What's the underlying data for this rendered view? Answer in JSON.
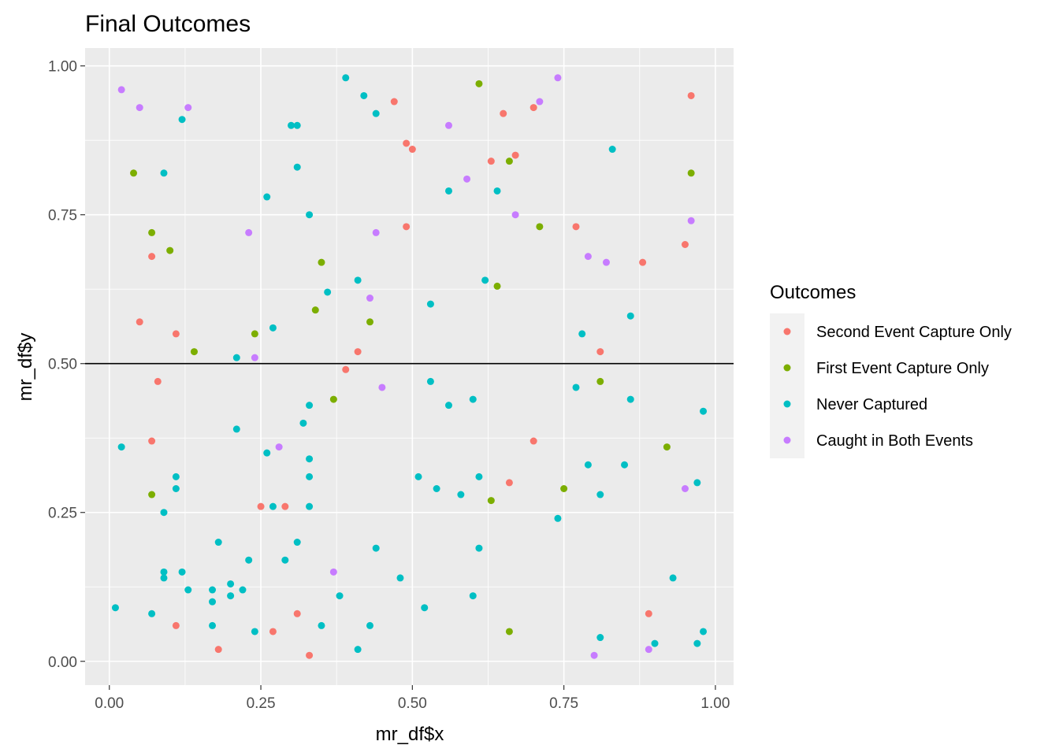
{
  "chart_data": {
    "type": "scatter",
    "title": "Final Outcomes",
    "xlabel": "mr_df$x",
    "ylabel": "mr_df$y",
    "xlim": [
      -0.04,
      1.03
    ],
    "ylim": [
      -0.04,
      1.03
    ],
    "xticks": [
      0,
      0.25,
      0.5,
      0.75,
      1
    ],
    "xtick_labels": [
      "0.00",
      "0.25",
      "0.50",
      "0.75",
      "1.00"
    ],
    "yticks": [
      0,
      0.25,
      0.5,
      0.75,
      1
    ],
    "ytick_labels": [
      "0.00",
      "0.25",
      "0.50",
      "0.75",
      "1.00"
    ],
    "grid": true,
    "hline": 0.5,
    "legend": {
      "title": "Outcomes",
      "position": "right"
    },
    "series": [
      {
        "name": "Second Event Capture Only",
        "color": "#F8766D",
        "points": [
          [
            0.47,
            0.94
          ],
          [
            0.49,
            0.87
          ],
          [
            0.5,
            0.86
          ],
          [
            0.65,
            0.92
          ],
          [
            0.7,
            0.93
          ],
          [
            0.96,
            0.95
          ],
          [
            0.63,
            0.84
          ],
          [
            0.67,
            0.85
          ],
          [
            0.49,
            0.73
          ],
          [
            0.77,
            0.73
          ],
          [
            0.07,
            0.68
          ],
          [
            0.88,
            0.67
          ],
          [
            0.95,
            0.7
          ],
          [
            0.05,
            0.57
          ],
          [
            0.11,
            0.55
          ],
          [
            0.41,
            0.52
          ],
          [
            0.81,
            0.52
          ],
          [
            0.08,
            0.47
          ],
          [
            0.39,
            0.49
          ],
          [
            0.07,
            0.37
          ],
          [
            0.7,
            0.37
          ],
          [
            0.66,
            0.3
          ],
          [
            0.25,
            0.26
          ],
          [
            0.29,
            0.26
          ],
          [
            0.31,
            0.08
          ],
          [
            0.11,
            0.06
          ],
          [
            0.27,
            0.05
          ],
          [
            0.18,
            0.02
          ],
          [
            0.33,
            0.01
          ],
          [
            0.89,
            0.08
          ]
        ]
      },
      {
        "name": "First Event Capture Only",
        "color": "#7CAE00",
        "points": [
          [
            0.61,
            0.97
          ],
          [
            0.04,
            0.82
          ],
          [
            0.66,
            0.84
          ],
          [
            0.96,
            0.82
          ],
          [
            0.07,
            0.72
          ],
          [
            0.71,
            0.73
          ],
          [
            0.1,
            0.69
          ],
          [
            0.35,
            0.67
          ],
          [
            0.64,
            0.63
          ],
          [
            0.34,
            0.59
          ],
          [
            0.43,
            0.57
          ],
          [
            0.24,
            0.55
          ],
          [
            0.14,
            0.52
          ],
          [
            0.81,
            0.47
          ],
          [
            0.37,
            0.44
          ],
          [
            0.92,
            0.36
          ],
          [
            0.07,
            0.28
          ],
          [
            0.75,
            0.29
          ],
          [
            0.63,
            0.27
          ],
          [
            0.66,
            0.05
          ]
        ]
      },
      {
        "name": "Never Captured",
        "color": "#00BFC4",
        "points": [
          [
            0.39,
            0.98
          ],
          [
            0.42,
            0.95
          ],
          [
            0.44,
            0.92
          ],
          [
            0.12,
            0.91
          ],
          [
            0.3,
            0.9
          ],
          [
            0.31,
            0.9
          ],
          [
            0.83,
            0.86
          ],
          [
            0.09,
            0.82
          ],
          [
            0.31,
            0.83
          ],
          [
            0.56,
            0.79
          ],
          [
            0.64,
            0.79
          ],
          [
            0.26,
            0.78
          ],
          [
            0.33,
            0.75
          ],
          [
            0.62,
            0.64
          ],
          [
            0.41,
            0.64
          ],
          [
            0.36,
            0.62
          ],
          [
            0.53,
            0.6
          ],
          [
            0.86,
            0.58
          ],
          [
            0.27,
            0.56
          ],
          [
            0.78,
            0.55
          ],
          [
            0.21,
            0.51
          ],
          [
            0.53,
            0.47
          ],
          [
            0.77,
            0.46
          ],
          [
            0.56,
            0.43
          ],
          [
            0.33,
            0.43
          ],
          [
            0.6,
            0.44
          ],
          [
            0.86,
            0.44
          ],
          [
            0.98,
            0.42
          ],
          [
            0.32,
            0.4
          ],
          [
            0.21,
            0.39
          ],
          [
            0.02,
            0.36
          ],
          [
            0.26,
            0.35
          ],
          [
            0.33,
            0.34
          ],
          [
            0.79,
            0.33
          ],
          [
            0.85,
            0.33
          ],
          [
            0.11,
            0.31
          ],
          [
            0.33,
            0.31
          ],
          [
            0.51,
            0.31
          ],
          [
            0.61,
            0.31
          ],
          [
            0.11,
            0.29
          ],
          [
            0.54,
            0.29
          ],
          [
            0.58,
            0.28
          ],
          [
            0.81,
            0.28
          ],
          [
            0.97,
            0.3
          ],
          [
            0.27,
            0.26
          ],
          [
            0.33,
            0.26
          ],
          [
            0.09,
            0.25
          ],
          [
            0.74,
            0.24
          ],
          [
            0.18,
            0.2
          ],
          [
            0.31,
            0.2
          ],
          [
            0.44,
            0.19
          ],
          [
            0.61,
            0.19
          ],
          [
            0.29,
            0.17
          ],
          [
            0.23,
            0.17
          ],
          [
            0.12,
            0.15
          ],
          [
            0.09,
            0.14
          ],
          [
            0.09,
            0.15
          ],
          [
            0.48,
            0.14
          ],
          [
            0.93,
            0.14
          ],
          [
            0.2,
            0.13
          ],
          [
            0.17,
            0.12
          ],
          [
            0.22,
            0.12
          ],
          [
            0.13,
            0.12
          ],
          [
            0.2,
            0.11
          ],
          [
            0.6,
            0.11
          ],
          [
            0.38,
            0.11
          ],
          [
            0.17,
            0.1
          ],
          [
            0.52,
            0.09
          ],
          [
            0.01,
            0.09
          ],
          [
            0.07,
            0.08
          ],
          [
            0.17,
            0.06
          ],
          [
            0.35,
            0.06
          ],
          [
            0.43,
            0.06
          ],
          [
            0.24,
            0.05
          ],
          [
            0.81,
            0.04
          ],
          [
            0.98,
            0.05
          ],
          [
            0.41,
            0.02
          ],
          [
            0.9,
            0.03
          ],
          [
            0.97,
            0.03
          ]
        ]
      },
      {
        "name": "Caught in Both Events",
        "color": "#C77CFF",
        "points": [
          [
            0.02,
            0.96
          ],
          [
            0.05,
            0.93
          ],
          [
            0.13,
            0.93
          ],
          [
            0.74,
            0.98
          ],
          [
            0.71,
            0.94
          ],
          [
            0.56,
            0.9
          ],
          [
            0.59,
            0.81
          ],
          [
            0.67,
            0.75
          ],
          [
            0.23,
            0.72
          ],
          [
            0.44,
            0.72
          ],
          [
            0.96,
            0.74
          ],
          [
            0.79,
            0.68
          ],
          [
            0.82,
            0.67
          ],
          [
            0.43,
            0.61
          ],
          [
            0.24,
            0.51
          ],
          [
            0.45,
            0.46
          ],
          [
            0.28,
            0.36
          ],
          [
            0.95,
            0.29
          ],
          [
            0.37,
            0.15
          ],
          [
            0.8,
            0.01
          ],
          [
            0.89,
            0.02
          ]
        ]
      }
    ]
  }
}
